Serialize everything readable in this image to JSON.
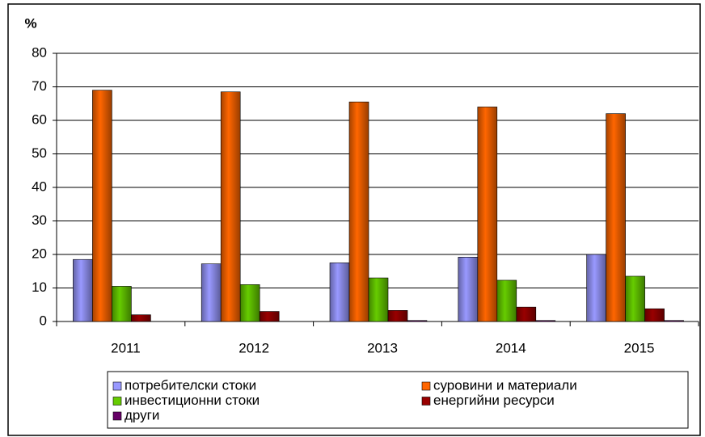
{
  "chart_data": {
    "type": "bar",
    "title": "%",
    "categories": [
      "2011",
      "2012",
      "2013",
      "2014",
      "2015"
    ],
    "series": [
      {
        "name": "потребителски стоки",
        "color": "#9999ff",
        "values": [
          18.5,
          17.2,
          17.5,
          19.2,
          20
        ]
      },
      {
        "name": "суровини и материали",
        "color": "#ff6600",
        "values": [
          69,
          68.5,
          65.5,
          64,
          62
        ]
      },
      {
        "name": "инвестиционни стоки",
        "color": "#66cc00",
        "values": [
          10.5,
          11,
          13,
          12.3,
          13.5
        ]
      },
      {
        "name": "енергийни ресурси",
        "color": "#990000",
        "values": [
          2,
          3,
          3.3,
          4.3,
          3.8
        ]
      },
      {
        "name": "други",
        "color": "#660066",
        "values": [
          0,
          0,
          0.3,
          0.3,
          0.3
        ]
      }
    ],
    "ylim": [
      0,
      80
    ],
    "yticks": [
      0,
      10,
      20,
      30,
      40,
      50,
      60,
      70,
      80
    ],
    "grid": true
  }
}
